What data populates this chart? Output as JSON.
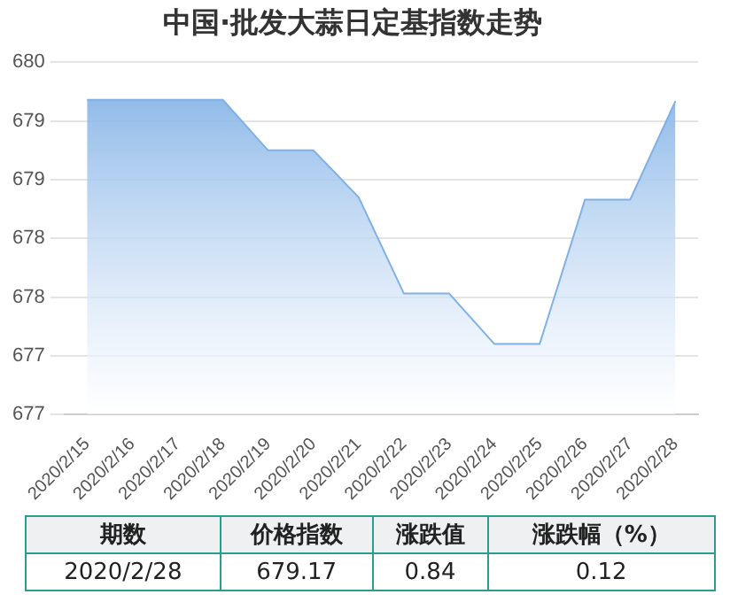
{
  "chart_data": {
    "type": "area",
    "title": "中国·批发大蒜日定基指数走势",
    "categories": [
      "2020/2/15",
      "2020/2/16",
      "2020/2/17",
      "2020/2/18",
      "2020/2/19",
      "2020/2/20",
      "2020/2/21",
      "2020/2/22",
      "2020/2/23",
      "2020/2/24",
      "2020/2/25",
      "2020/2/26",
      "2020/2/27",
      "2020/2/28"
    ],
    "series": [
      {
        "color": "#7fb0e6",
        "values": [
          679.18,
          679.18,
          679.18,
          679.18,
          678.75,
          678.75,
          678.35,
          677.53,
          677.53,
          677.1,
          677.1,
          678.33,
          678.33,
          679.17
        ]
      }
    ],
    "ylim": [
      676.5,
      679.5
    ],
    "yticks": [
      {
        "value": 676.5,
        "label": "677"
      },
      {
        "value": 677,
        "label": "677"
      },
      {
        "value": 677.5,
        "label": "678"
      },
      {
        "value": 678,
        "label": "678"
      },
      {
        "value": 678.5,
        "label": "679"
      },
      {
        "value": 679,
        "label": "679"
      },
      {
        "value": 679.5,
        "label": "680"
      }
    ],
    "grid": "y",
    "legend": false,
    "marker": "none",
    "annotations": [
      "期数",
      "价格指数",
      "涨跌值",
      "涨跌幅（%）",
      "2020/2/28",
      "679.17",
      "0.84",
      "0.12"
    ]
  }
}
